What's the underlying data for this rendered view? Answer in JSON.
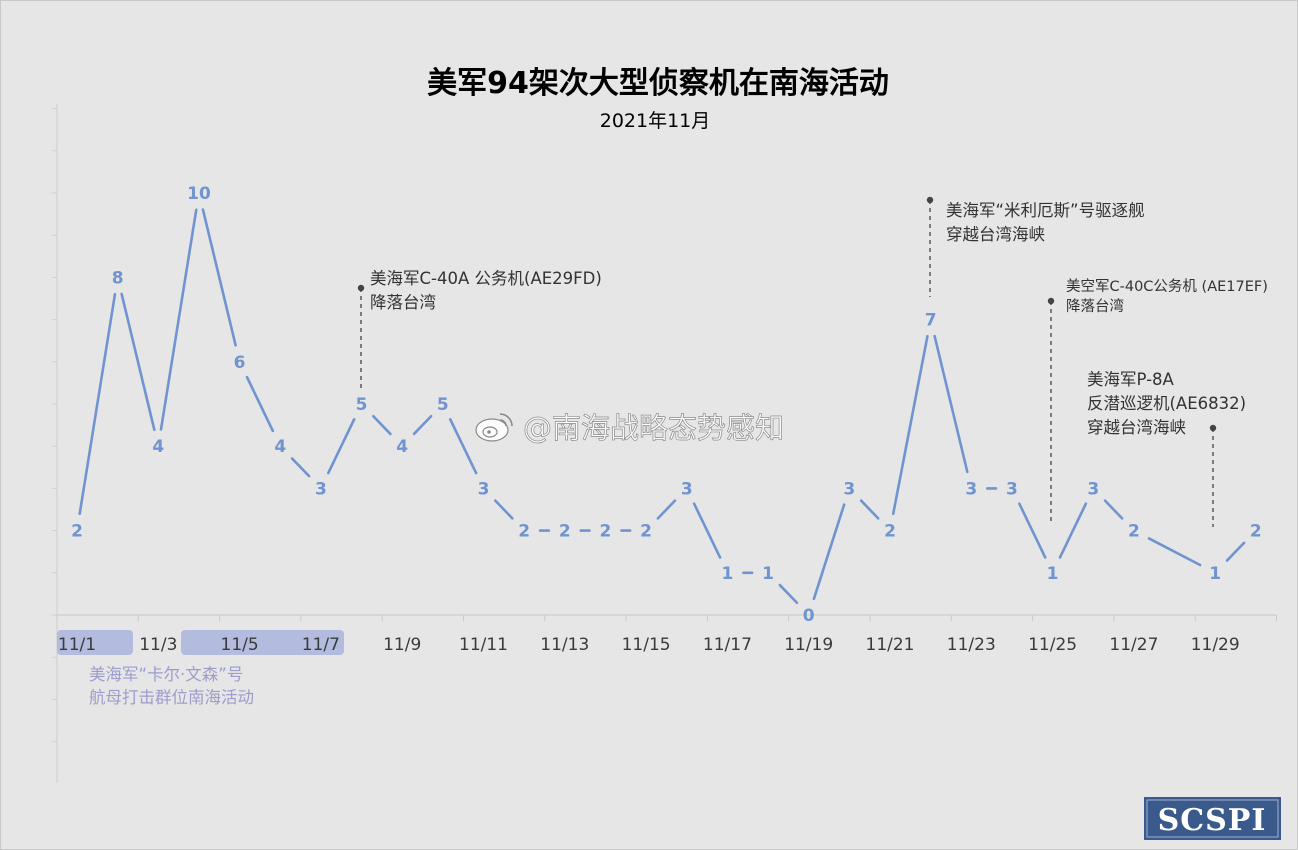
{
  "chart_data": {
    "type": "line",
    "title": "美军94架次大型侦察机在南海活动",
    "subtitle": "2021年11月",
    "x": [
      "11/1",
      "11/2",
      "11/3",
      "11/4",
      "11/5",
      "11/6",
      "11/7",
      "11/8",
      "11/9",
      "11/10",
      "11/11",
      "11/12",
      "11/13",
      "11/14",
      "11/15",
      "11/16",
      "11/17",
      "11/18",
      "11/19",
      "11/20",
      "11/21",
      "11/22",
      "11/23",
      "11/24",
      "11/25",
      "11/26",
      "11/27",
      "11/28",
      "11/29",
      "11/30"
    ],
    "values": [
      2,
      8,
      4,
      10,
      6,
      4,
      3,
      5,
      4,
      5,
      3,
      2,
      2,
      2,
      2,
      3,
      1,
      1,
      0,
      3,
      2,
      7,
      3,
      3,
      1,
      3,
      2,
      null,
      1,
      2
    ],
    "data_labels": [
      "2",
      "8",
      "4",
      "10",
      "6",
      "4",
      "3",
      "5",
      "4",
      "5",
      "3",
      "2",
      "2",
      "2",
      "2",
      "3",
      "1",
      "1",
      "0",
      "3",
      "2",
      "7",
      "3",
      "3",
      "1",
      "3",
      "2",
      "",
      "1",
      "2"
    ],
    "x_ticks": [
      "11/1",
      "11/3",
      "11/5",
      "11/7",
      "11/9",
      "11/11",
      "11/13",
      "11/15",
      "11/17",
      "11/19",
      "11/21",
      "11/23",
      "11/25",
      "11/27",
      "11/29"
    ],
    "highlighted_ticks": [
      "11/1",
      "11/5",
      "11/7"
    ],
    "dashed_segments": [
      [
        "11/12",
        "11/15"
      ],
      [
        "11/17",
        "11/18"
      ],
      [
        "11/23",
        "11/24"
      ]
    ],
    "ylim": [
      0,
      12
    ],
    "grid": false,
    "series_color": "#6f94cf",
    "highlight_color": "#a9b4dd",
    "annotations": [
      {
        "lines": [
          "美海军C-40A 公务机(AE29FD)",
          "降落台湾"
        ],
        "date": "11/8"
      },
      {
        "lines": [
          "美海军“米利厄斯”号驱逐舰",
          "穿越台湾海峡"
        ],
        "date": "11/22"
      },
      {
        "lines": [
          "美空军C-40C公务机 (AE17EF)",
          "降落台湾"
        ],
        "date": "11/25"
      },
      {
        "lines": [
          "美海军P-8A",
          "反潜巡逻机(AE6832)",
          "穿越台湾海峡"
        ],
        "date": "11/29"
      },
      {
        "lines": [
          "美海军“卡尔·文森”号",
          "航母打击群位南海活动"
        ],
        "date": "11/1–11/7"
      }
    ]
  },
  "watermark": "@南海战略态势感知",
  "logo": "SCSPI",
  "logo_color": "#3a5a8c"
}
